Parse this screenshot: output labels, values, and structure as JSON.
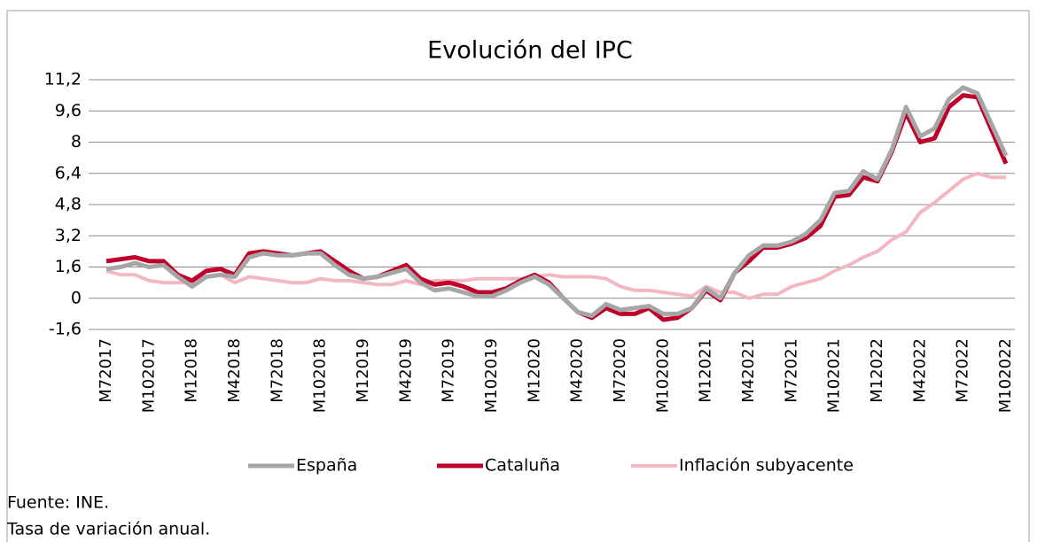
{
  "chart_data": {
    "type": "line",
    "title": "Evolución del IPC",
    "categories": [
      "M72017",
      null,
      null,
      "M102017",
      null,
      null,
      "M12018",
      null,
      null,
      "M42018",
      null,
      null,
      "M72018",
      null,
      null,
      "M102018",
      null,
      null,
      "M12019",
      null,
      null,
      "M42019",
      null,
      null,
      "M72019",
      null,
      null,
      "M102019",
      null,
      null,
      "M12020",
      null,
      null,
      "M42020",
      null,
      null,
      "M72020",
      null,
      null,
      "M102020",
      null,
      null,
      "M12021",
      null,
      null,
      "M42021",
      null,
      null,
      "M72021",
      null,
      null,
      "M102021",
      null,
      null,
      "M12022",
      null,
      null,
      "M42022",
      null,
      null,
      "M72022",
      null,
      null,
      "M102022"
    ],
    "series": [
      {
        "name": "España",
        "color": "#a6a6a6",
        "values": [
          1.5,
          1.6,
          1.8,
          1.6,
          1.7,
          1.1,
          0.6,
          1.1,
          1.2,
          1.1,
          2.1,
          2.3,
          2.2,
          2.2,
          2.3,
          2.3,
          1.7,
          1.2,
          1.0,
          1.1,
          1.3,
          1.5,
          0.8,
          0.4,
          0.5,
          0.3,
          0.1,
          0.1,
          0.4,
          0.8,
          1.1,
          0.7,
          0.0,
          -0.7,
          -0.9,
          -0.3,
          -0.6,
          -0.5,
          -0.4,
          -0.8,
          -0.8,
          -0.5,
          0.5,
          0.0,
          1.3,
          2.2,
          2.7,
          2.7,
          2.9,
          3.3,
          4.0,
          5.4,
          5.5,
          6.5,
          6.1,
          7.6,
          9.8,
          8.3,
          8.7,
          10.2,
          10.8,
          10.5,
          8.9,
          7.3
        ]
      },
      {
        "name": "Cataluña",
        "color": "#c00028",
        "values": [
          1.9,
          2.0,
          2.1,
          1.9,
          1.9,
          1.2,
          0.9,
          1.4,
          1.5,
          1.2,
          2.3,
          2.4,
          2.3,
          2.2,
          2.3,
          2.4,
          1.9,
          1.4,
          1.0,
          1.1,
          1.4,
          1.7,
          1.0,
          0.7,
          0.8,
          0.6,
          0.3,
          0.3,
          0.5,
          0.9,
          1.2,
          0.8,
          0.0,
          -0.7,
          -1.0,
          -0.5,
          -0.8,
          -0.8,
          -0.5,
          -1.1,
          -1.0,
          -0.5,
          0.4,
          -0.1,
          1.3,
          1.9,
          2.6,
          2.6,
          2.8,
          3.1,
          3.7,
          5.2,
          5.3,
          6.2,
          6.0,
          7.5,
          9.5,
          8.0,
          8.2,
          9.8,
          10.4,
          10.3,
          8.6,
          6.9
        ]
      },
      {
        "name": "Inflación subyacente",
        "color": "#f2b8c2",
        "values": [
          1.4,
          1.2,
          1.2,
          0.9,
          0.8,
          0.8,
          0.8,
          1.1,
          1.2,
          0.8,
          1.1,
          1.0,
          0.9,
          0.8,
          0.8,
          1.0,
          0.9,
          0.9,
          0.8,
          0.7,
          0.7,
          0.9,
          0.7,
          0.9,
          0.9,
          0.9,
          1.0,
          1.0,
          1.0,
          1.0,
          1.1,
          1.2,
          1.1,
          1.1,
          1.1,
          1.0,
          0.6,
          0.4,
          0.4,
          0.3,
          0.2,
          0.1,
          0.6,
          0.3,
          0.3,
          0.0,
          0.2,
          0.2,
          0.6,
          0.8,
          1.0,
          1.4,
          1.7,
          2.1,
          2.4,
          3.0,
          3.4,
          4.4,
          4.9,
          5.5,
          6.1,
          6.4,
          6.2,
          6.2
        ]
      }
    ],
    "ylim": [
      -1.6,
      11.2
    ],
    "yticks": [
      {
        "value": -1.6,
        "label": "-1,6"
      },
      0,
      {
        "value": 1.6,
        "label": "1,6"
      },
      {
        "value": 3.2,
        "label": "3,2"
      },
      {
        "value": 4.8,
        "label": "4,8"
      },
      {
        "value": 6.4,
        "label": "6,4"
      },
      8,
      {
        "value": 9.6,
        "label": "9,6"
      },
      {
        "value": 11.2,
        "label": "11,2"
      }
    ],
    "grid": true,
    "legend": "bottom",
    "notes": [
      "Fuente: INE.",
      "Tasa de variación anual."
    ]
  }
}
